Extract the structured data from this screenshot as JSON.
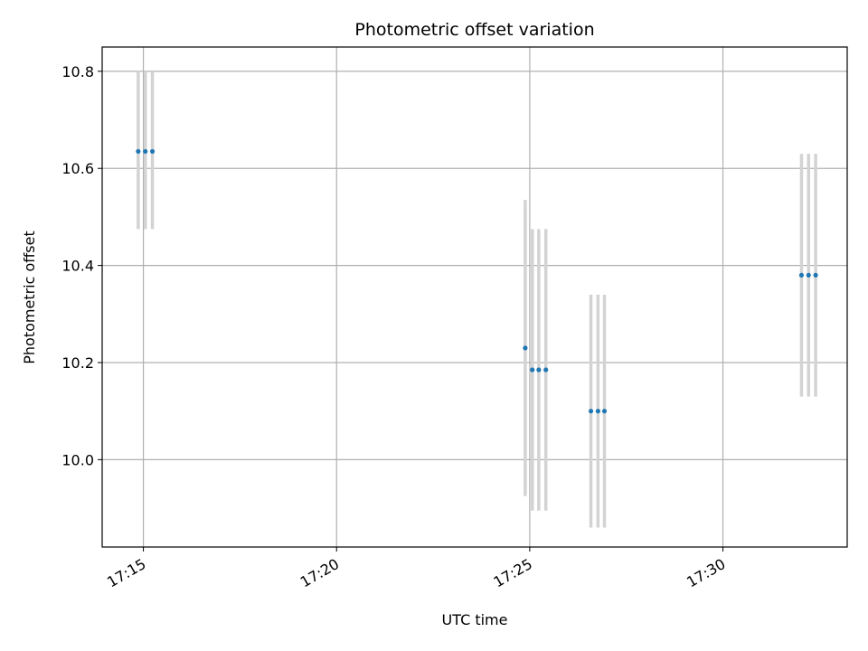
{
  "chart_data": {
    "type": "scatter",
    "title": "Photometric offset variation",
    "xlabel": "UTC time",
    "ylabel": "Photometric offset",
    "x_ticks": [
      "17:15",
      "17:20",
      "17:25",
      "17:30"
    ],
    "x_tick_minutes": [
      15,
      20,
      25,
      30
    ],
    "xlim": [
      "17:13:56",
      "17:33:13"
    ],
    "y_ticks": [
      "10.0",
      "10.2",
      "10.4",
      "10.6",
      "10.8"
    ],
    "ylim": [
      9.82,
      10.85
    ],
    "grid": true,
    "errorbar_color": "#d3d3d3",
    "point_color": "#1f77b4",
    "points": [
      {
        "time": "17:14:52",
        "y": 10.635,
        "ylow": 10.475,
        "yhigh": 10.8
      },
      {
        "time": "17:15:03",
        "y": 10.635,
        "ylow": 10.475,
        "yhigh": 10.8
      },
      {
        "time": "17:15:14",
        "y": 10.635,
        "ylow": 10.475,
        "yhigh": 10.8
      },
      {
        "time": "17:24:53",
        "y": 10.23,
        "ylow": 9.925,
        "yhigh": 10.535
      },
      {
        "time": "17:25:04",
        "y": 10.185,
        "ylow": 9.895,
        "yhigh": 10.475
      },
      {
        "time": "17:25:14",
        "y": 10.185,
        "ylow": 9.895,
        "yhigh": 10.475
      },
      {
        "time": "17:25:25",
        "y": 10.185,
        "ylow": 9.895,
        "yhigh": 10.475
      },
      {
        "time": "17:26:35",
        "y": 10.1,
        "ylow": 9.86,
        "yhigh": 10.34
      },
      {
        "time": "17:26:46",
        "y": 10.1,
        "ylow": 9.86,
        "yhigh": 10.34
      },
      {
        "time": "17:26:56",
        "y": 10.1,
        "ylow": 9.86,
        "yhigh": 10.34
      },
      {
        "time": "17:32:02",
        "y": 10.38,
        "ylow": 10.13,
        "yhigh": 10.63
      },
      {
        "time": "17:32:13",
        "y": 10.38,
        "ylow": 10.13,
        "yhigh": 10.63
      },
      {
        "time": "17:32:24",
        "y": 10.38,
        "ylow": 10.13,
        "yhigh": 10.63
      }
    ]
  }
}
